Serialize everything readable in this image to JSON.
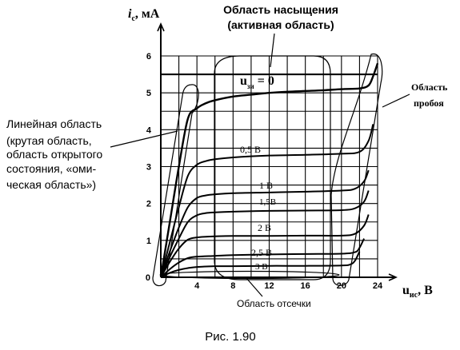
{
  "chart_data": {
    "type": "line",
    "title": "Область насыщения",
    "subtitle": "(активная область)",
    "ylabel_main": "i",
    "ylabel_sub": "с",
    "ylabel_unit": ", мА",
    "xlabel_main": "u",
    "xlabel_sub": "ис",
    "xlabel_unit": ", В",
    "xlim": [
      0,
      24
    ],
    "ylim": [
      0,
      6
    ],
    "x_ticks": [
      "4",
      "8",
      "12",
      "16",
      "20",
      "24"
    ],
    "y_ticks": [
      "1",
      "2",
      "3",
      "4",
      "5",
      "6"
    ],
    "origin_label": "0",
    "grid": true,
    "curve_labels": {
      "u0_main": "u",
      "u0_sub": "зи",
      "u0_rest": "= 0",
      "v05": "0,5 В",
      "v1": "1 В",
      "v15": "1,5В",
      "v2": "2 В",
      "v25": "2,5 В",
      "v3": "3 В"
    },
    "series": [
      {
        "param": "0",
        "x": [
          0,
          1,
          2,
          3,
          4,
          5,
          6,
          8,
          10,
          12,
          14,
          16,
          18,
          20,
          22,
          23,
          23.5,
          24
        ],
        "y": [
          0,
          1.5,
          3.0,
          4.3,
          4.58,
          4.72,
          4.8,
          4.9,
          4.95,
          5.0,
          5.03,
          5.05,
          5.07,
          5.1,
          5.12,
          5.2,
          5.45,
          5.8
        ]
      },
      {
        "param": "0,5",
        "x": [
          0,
          1,
          2,
          3,
          4,
          5,
          6,
          8,
          12,
          16,
          20,
          22,
          23,
          23.5
        ],
        "y": [
          0,
          0.95,
          1.9,
          2.75,
          3.05,
          3.15,
          3.2,
          3.25,
          3.3,
          3.32,
          3.35,
          3.4,
          3.7,
          4.15
        ]
      },
      {
        "param": "1",
        "x": [
          0,
          1,
          2,
          3,
          4,
          5,
          6,
          8,
          12,
          16,
          20,
          21.5,
          22.5,
          23
        ],
        "y": [
          0,
          0.7,
          1.35,
          1.9,
          2.15,
          2.22,
          2.25,
          2.28,
          2.3,
          2.32,
          2.35,
          2.4,
          2.6,
          2.9
        ]
      },
      {
        "param": "1,5",
        "x": [
          0,
          1,
          2,
          3,
          4,
          5,
          6,
          8,
          12,
          16,
          20,
          21.5,
          22.5,
          23
        ],
        "y": [
          0,
          0.55,
          1.05,
          1.5,
          1.68,
          1.74,
          1.76,
          1.78,
          1.8,
          1.81,
          1.82,
          1.87,
          2.05,
          2.35
        ]
      },
      {
        "param": "2",
        "x": [
          0,
          1,
          2,
          3,
          4,
          5,
          6,
          8,
          12,
          16,
          20,
          21.5,
          22.5,
          23
        ],
        "y": [
          0,
          0.42,
          0.78,
          1.02,
          1.08,
          1.1,
          1.11,
          1.12,
          1.12,
          1.13,
          1.13,
          1.18,
          1.4,
          1.7
        ]
      },
      {
        "param": "2,5",
        "x": [
          0,
          1,
          2,
          3,
          4,
          6,
          8,
          12,
          16,
          20,
          21.5,
          22,
          22.5
        ],
        "y": [
          0,
          0.22,
          0.4,
          0.52,
          0.56,
          0.58,
          0.6,
          0.62,
          0.63,
          0.64,
          0.68,
          0.8,
          1.05
        ]
      },
      {
        "param": "3",
        "x": [
          0,
          1,
          2,
          3,
          4,
          6,
          8,
          12,
          16,
          20,
          21,
          21.5,
          22
        ],
        "y": [
          0,
          0.12,
          0.2,
          0.25,
          0.28,
          0.3,
          0.3,
          0.31,
          0.31,
          0.32,
          0.35,
          0.45,
          0.7
        ]
      }
    ]
  },
  "annotations": {
    "linear_region": [
      "Линейная область",
      "(крутая область,",
      "область открытого",
      "состояния, «оми-",
      "ческая область»)"
    ],
    "breakdown_region": [
      "Область",
      "пробоя"
    ],
    "cutoff_region": "Область отсечки"
  },
  "caption": "Рис. 1.90"
}
